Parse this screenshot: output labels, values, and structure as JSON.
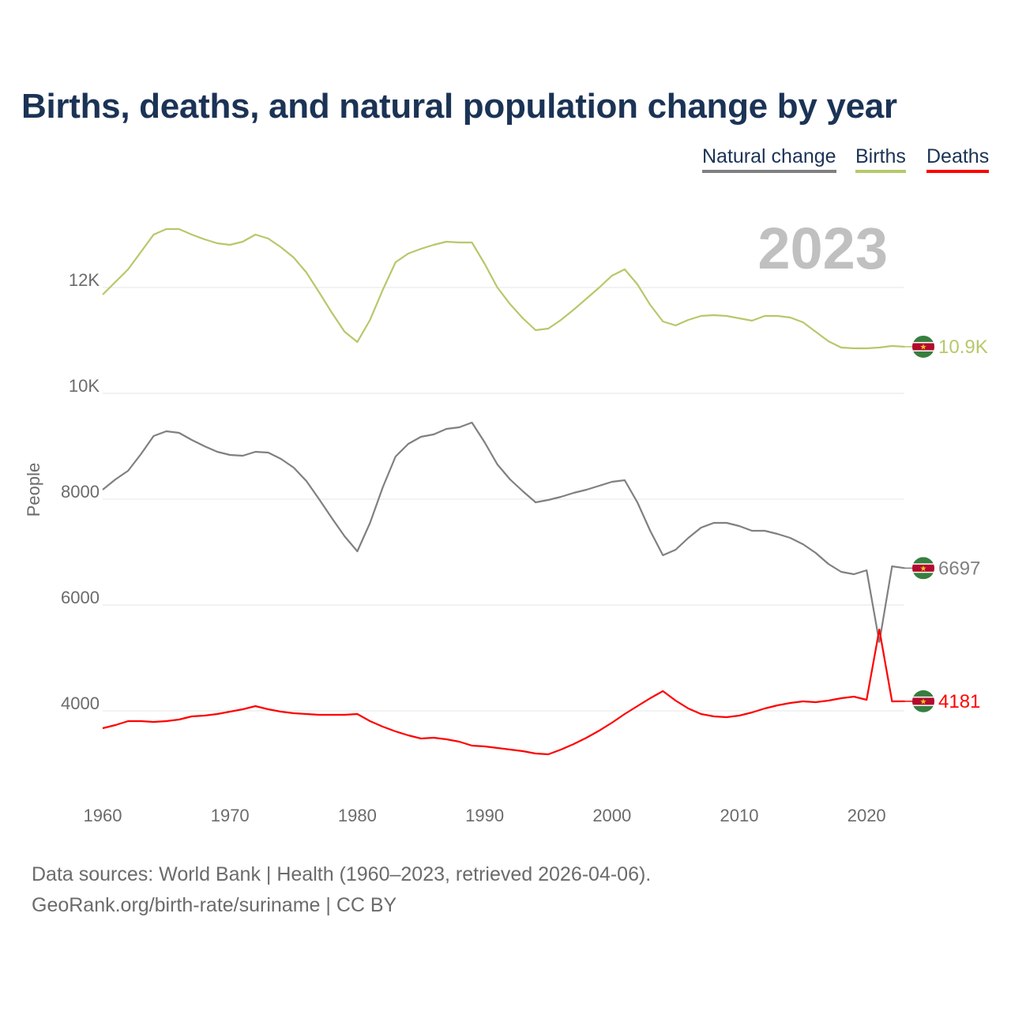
{
  "chart_data": {
    "type": "line",
    "title": "Births, deaths, and natural population change by year",
    "xlabel": "",
    "ylabel": "People",
    "xlim": [
      1960,
      2023
    ],
    "ylim": [
      2700,
      13600
    ],
    "x_ticks": [
      "1960",
      "1970",
      "1980",
      "1990",
      "2000",
      "2010",
      "2020"
    ],
    "y_ticks": [
      {
        "v": 4000,
        "label": "4000"
      },
      {
        "v": 6000,
        "label": "6000"
      },
      {
        "v": 8000,
        "label": "8000"
      },
      {
        "v": 10000,
        "label": "10K"
      },
      {
        "v": 12000,
        "label": "12K"
      }
    ],
    "grid": true,
    "legend_position": "top-right",
    "year_label": "2023",
    "x": [
      1960,
      1961,
      1962,
      1963,
      1964,
      1965,
      1966,
      1967,
      1968,
      1969,
      1970,
      1971,
      1972,
      1973,
      1974,
      1975,
      1976,
      1977,
      1978,
      1979,
      1980,
      1981,
      1982,
      1983,
      1984,
      1985,
      1986,
      1987,
      1988,
      1989,
      1990,
      1991,
      1992,
      1993,
      1994,
      1995,
      1996,
      1997,
      1998,
      1999,
      2000,
      2001,
      2002,
      2003,
      2004,
      2005,
      2006,
      2007,
      2008,
      2009,
      2010,
      2011,
      2012,
      2013,
      2014,
      2015,
      2016,
      2017,
      2018,
      2019,
      2020,
      2021,
      2022,
      2023
    ],
    "series": [
      {
        "name": "Natural change",
        "color": "#808080",
        "end_label": "6697",
        "values": [
          8179,
          8373,
          8537,
          8851,
          9194,
          9284,
          9254,
          9119,
          9000,
          8896,
          8836,
          8821,
          8896,
          8881,
          8761,
          8597,
          8343,
          8000,
          7642,
          7299,
          7015,
          7552,
          8224,
          8806,
          9045,
          9179,
          9224,
          9328,
          9358,
          9448,
          9075,
          8657,
          8373,
          8149,
          7940,
          7985,
          8045,
          8119,
          8179,
          8254,
          8328,
          8358,
          7940,
          7403,
          6940,
          7045,
          7269,
          7463,
          7552,
          7552,
          7493,
          7403,
          7403,
          7343,
          7269,
          7149,
          6985,
          6776,
          6627,
          6582,
          6657,
          5300,
          6731,
          6697
        ]
      },
      {
        "name": "Births",
        "color": "#b5c96a",
        "end_label": "10.9K",
        "values": [
          11866,
          12104,
          12343,
          12672,
          13000,
          13104,
          13104,
          13000,
          12910,
          12836,
          12806,
          12866,
          13000,
          12925,
          12761,
          12567,
          12284,
          11910,
          11522,
          11164,
          10970,
          11388,
          11955,
          12478,
          12642,
          12731,
          12806,
          12866,
          12851,
          12851,
          12448,
          12000,
          11687,
          11418,
          11194,
          11224,
          11388,
          11582,
          11791,
          12000,
          12224,
          12343,
          12060,
          11672,
          11358,
          11284,
          11388,
          11463,
          11478,
          11463,
          11418,
          11373,
          11463,
          11463,
          11433,
          11343,
          11164,
          10985,
          10866,
          10851,
          10851,
          10866,
          10896,
          10881
        ]
      },
      {
        "name": "Deaths",
        "color": "#ff0000",
        "end_label": "4181",
        "values": [
          3672,
          3731,
          3806,
          3806,
          3791,
          3806,
          3836,
          3896,
          3910,
          3940,
          3985,
          4030,
          4090,
          4030,
          3985,
          3955,
          3940,
          3925,
          3925,
          3925,
          3940,
          3806,
          3701,
          3612,
          3537,
          3478,
          3493,
          3463,
          3418,
          3343,
          3328,
          3299,
          3269,
          3239,
          3194,
          3179,
          3269,
          3373,
          3493,
          3627,
          3776,
          3940,
          4090,
          4239,
          4373,
          4194,
          4045,
          3940,
          3896,
          3881,
          3910,
          3970,
          4045,
          4104,
          4149,
          4179,
          4164,
          4194,
          4239,
          4269,
          4209,
          5537,
          4179,
          4181
        ]
      }
    ]
  },
  "footer": {
    "line1": "Data sources: World Bank | Health (1960–2023, retrieved 2026-04-06).",
    "line2": "GeoRank.org/birth-rate/suriname | CC BY"
  }
}
